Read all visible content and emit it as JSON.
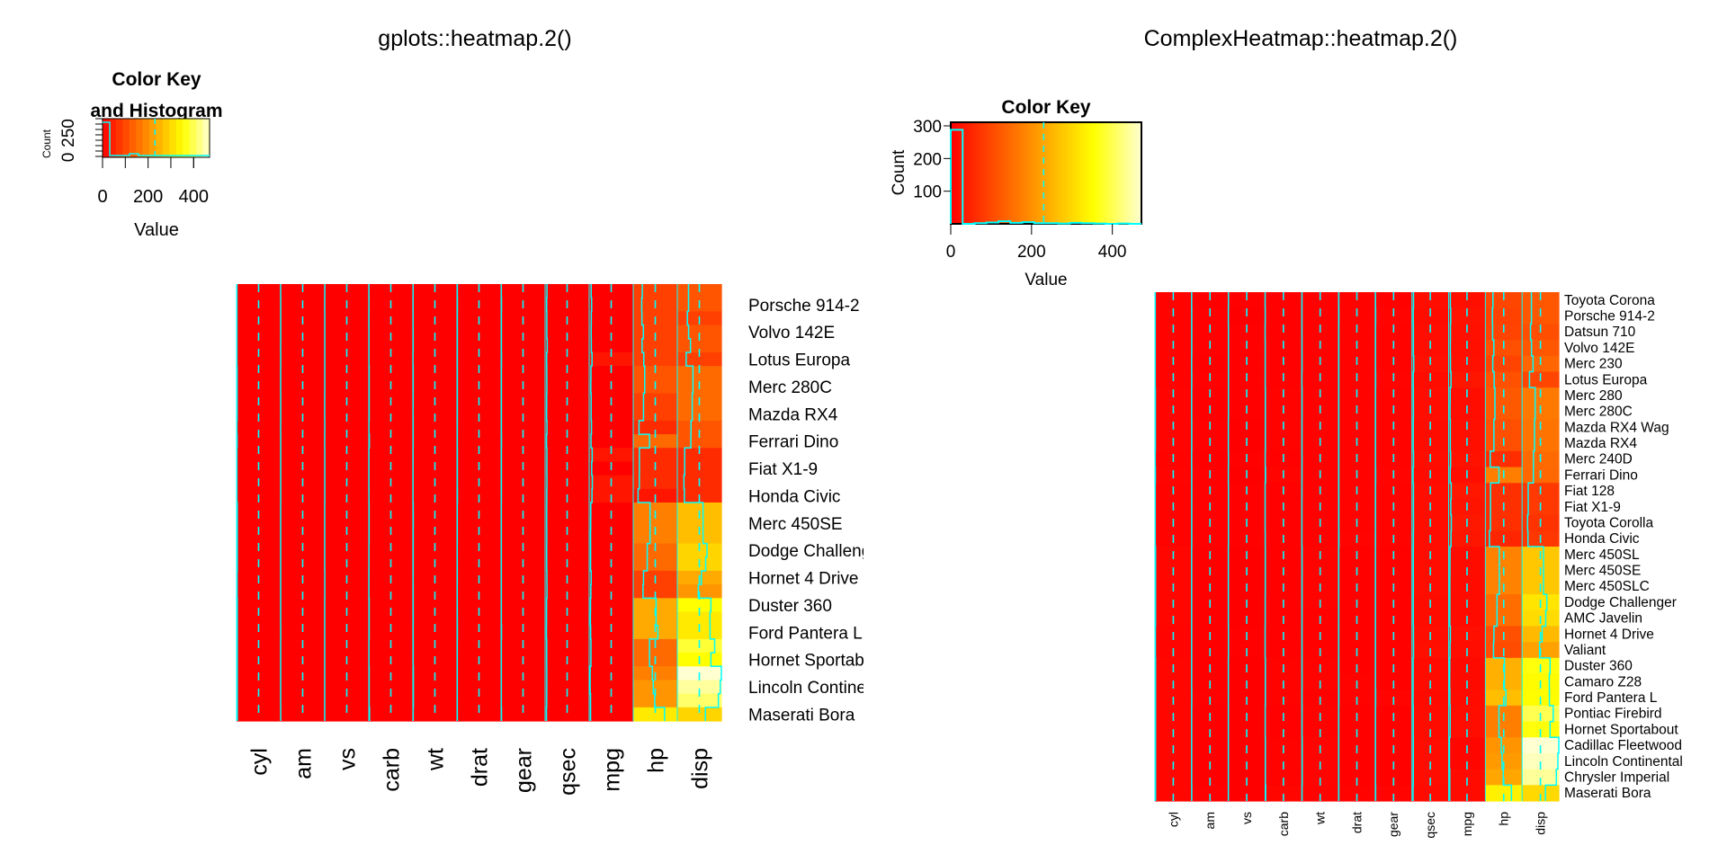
{
  "colors": {
    "trace": "#00FFFF",
    "low": "#FF0000",
    "mid": "#FFFF00",
    "high": "#FFFFD0"
  },
  "chart_data": [
    {
      "type": "heatmap",
      "title": "gplots::heatmap.2()",
      "key": {
        "title_line1": "Color Key",
        "title_line2": "and Histogram",
        "xlabel": "Value",
        "ylabel": "Count",
        "xticks": [
          "0",
          "200",
          "400"
        ],
        "yticks": [
          "0",
          "250"
        ],
        "range": [
          0,
          472
        ]
      },
      "columns": [
        "cyl",
        "am",
        "vs",
        "carb",
        "wt",
        "drat",
        "gear",
        "qsec",
        "mpg",
        "hp",
        "disp"
      ],
      "row_labels_every_other": [
        "Porsche 914-2",
        "Volvo 142E",
        "Lotus Europa",
        "Merc 280C",
        "Mazda RX4",
        "Ferrari Dino",
        "Fiat X1-9",
        "Honda Civic",
        "Merc 450SE",
        "Dodge Challenger",
        "Hornet 4 Drive",
        "Duster 360",
        "Ford Pantera L",
        "Hornet Sportabout",
        "Lincoln Continental",
        "Maserati Bora"
      ]
    },
    {
      "type": "heatmap",
      "title": "ComplexHeatmap::heatmap.2()",
      "key": {
        "title_line1": "Color Key",
        "xlabel": "Value",
        "ylabel": "Count",
        "xticks": [
          "0",
          "200",
          "400"
        ],
        "yticks": [
          "100",
          "200",
          "300"
        ],
        "range": [
          0,
          472
        ],
        "ylim": [
          0,
          300
        ]
      },
      "columns": [
        "cyl",
        "am",
        "vs",
        "carb",
        "wt",
        "drat",
        "gear",
        "qsec",
        "mpg",
        "hp",
        "disp"
      ],
      "histogram": [
        288,
        0,
        2,
        4,
        8,
        3,
        5,
        2,
        2,
        1,
        3,
        2,
        1,
        0,
        1,
        0
      ],
      "rows": [
        {
          "label": "Toyota Corona",
          "values": [
            4,
            0,
            1,
            1,
            2.465,
            3.7,
            3,
            20.01,
            21.5,
            97,
            120.1
          ]
        },
        {
          "label": "Porsche 914-2",
          "values": [
            4,
            1,
            0,
            2,
            2.14,
            4.43,
            5,
            16.7,
            26,
            91,
            120.3
          ]
        },
        {
          "label": "Datsun 710",
          "values": [
            4,
            1,
            1,
            1,
            2.32,
            3.85,
            4,
            18.61,
            22.8,
            93,
            108
          ]
        },
        {
          "label": "Volvo 142E",
          "values": [
            4,
            1,
            1,
            2,
            2.78,
            4.11,
            4,
            18.6,
            21.4,
            109,
            121
          ]
        },
        {
          "label": "Merc 230",
          "values": [
            4,
            0,
            1,
            2,
            3.15,
            3.92,
            4,
            22.9,
            22.8,
            95,
            140.8
          ]
        },
        {
          "label": "Lotus Europa",
          "values": [
            4,
            1,
            1,
            2,
            1.513,
            3.77,
            5,
            16.9,
            30.4,
            113,
            95.1
          ]
        },
        {
          "label": "Merc 280",
          "values": [
            6,
            0,
            1,
            4,
            3.44,
            3.92,
            4,
            18.3,
            19.2,
            123,
            167.6
          ]
        },
        {
          "label": "Merc 280C",
          "values": [
            6,
            0,
            1,
            4,
            3.44,
            3.92,
            4,
            18.9,
            17.8,
            123,
            167.6
          ]
        },
        {
          "label": "Mazda RX4 Wag",
          "values": [
            6,
            1,
            0,
            4,
            2.875,
            3.9,
            4,
            17.02,
            21,
            110,
            160
          ]
        },
        {
          "label": "Mazda RX4",
          "values": [
            6,
            1,
            0,
            4,
            2.62,
            3.9,
            4,
            16.46,
            21,
            110,
            160
          ]
        },
        {
          "label": "Merc 240D",
          "values": [
            4,
            0,
            1,
            2,
            3.19,
            3.69,
            4,
            20,
            24.4,
            62,
            146.7
          ]
        },
        {
          "label": "Ferrari Dino",
          "values": [
            6,
            1,
            0,
            6,
            2.77,
            3.62,
            5,
            15.5,
            19.7,
            175,
            145
          ]
        },
        {
          "label": "Fiat 128",
          "values": [
            4,
            1,
            1,
            1,
            2.2,
            4.08,
            4,
            19.47,
            32.4,
            66,
            78.7
          ]
        },
        {
          "label": "Fiat X1-9",
          "values": [
            4,
            1,
            1,
            1,
            1.935,
            4.08,
            4,
            18.9,
            27.3,
            66,
            79
          ]
        },
        {
          "label": "Toyota Corolla",
          "values": [
            4,
            1,
            1,
            1,
            1.835,
            4.22,
            4,
            19.9,
            33.9,
            65,
            71.1
          ]
        },
        {
          "label": "Honda Civic",
          "values": [
            4,
            1,
            1,
            2,
            1.615,
            4.93,
            4,
            18.52,
            30.4,
            52,
            75.7
          ]
        },
        {
          "label": "Merc 450SL",
          "values": [
            8,
            0,
            0,
            3,
            3.73,
            3.07,
            3,
            17.6,
            17.3,
            180,
            275.8
          ]
        },
        {
          "label": "Merc 450SE",
          "values": [
            8,
            0,
            0,
            3,
            4.07,
            3.07,
            3,
            17.4,
            16.4,
            180,
            275.8
          ]
        },
        {
          "label": "Merc 450SLC",
          "values": [
            8,
            0,
            0,
            3,
            3.78,
            3.07,
            3,
            18,
            15.2,
            180,
            275.8
          ]
        },
        {
          "label": "Dodge Challenger",
          "values": [
            8,
            0,
            0,
            2,
            3.52,
            2.76,
            3,
            16.87,
            15.5,
            150,
            318
          ]
        },
        {
          "label": "AMC Javelin",
          "values": [
            8,
            0,
            0,
            2,
            3.435,
            3.15,
            3,
            17.3,
            15.2,
            150,
            304
          ]
        },
        {
          "label": "Hornet 4 Drive",
          "values": [
            6,
            0,
            1,
            1,
            3.215,
            3.08,
            3,
            19.44,
            21.4,
            110,
            258
          ]
        },
        {
          "label": "Valiant",
          "values": [
            6,
            0,
            1,
            1,
            3.46,
            2.76,
            3,
            20.22,
            18.1,
            105,
            225
          ]
        },
        {
          "label": "Duster 360",
          "values": [
            8,
            0,
            0,
            4,
            3.57,
            3.21,
            3,
            15.84,
            14.3,
            245,
            360
          ]
        },
        {
          "label": "Camaro Z28",
          "values": [
            8,
            0,
            0,
            4,
            3.84,
            3.73,
            3,
            15.41,
            13.3,
            245,
            350
          ]
        },
        {
          "label": "Ford Pantera L",
          "values": [
            8,
            1,
            0,
            4,
            3.17,
            4.22,
            5,
            14.5,
            15.8,
            264,
            351
          ]
        },
        {
          "label": "Pontiac Firebird",
          "values": [
            8,
            0,
            0,
            2,
            3.845,
            3.08,
            3,
            17.05,
            19.2,
            175,
            400
          ]
        },
        {
          "label": "Hornet Sportabout",
          "values": [
            8,
            0,
            0,
            2,
            3.44,
            3.15,
            3,
            17.02,
            18.7,
            175,
            360
          ]
        },
        {
          "label": "Cadillac Fleetwood",
          "values": [
            8,
            0,
            0,
            4,
            5.25,
            2.93,
            3,
            17.98,
            10.4,
            205,
            472
          ]
        },
        {
          "label": "Lincoln Continental",
          "values": [
            8,
            0,
            0,
            4,
            5.424,
            3,
            3,
            17.82,
            10.4,
            215,
            460
          ]
        },
        {
          "label": "Chrysler Imperial",
          "values": [
            8,
            0,
            0,
            4,
            5.345,
            3.23,
            3,
            17.42,
            14.7,
            230,
            440
          ]
        },
        {
          "label": "Maserati Bora",
          "values": [
            8,
            1,
            0,
            8,
            3.57,
            3.54,
            5,
            14.6,
            15,
            335,
            301
          ]
        }
      ]
    }
  ]
}
